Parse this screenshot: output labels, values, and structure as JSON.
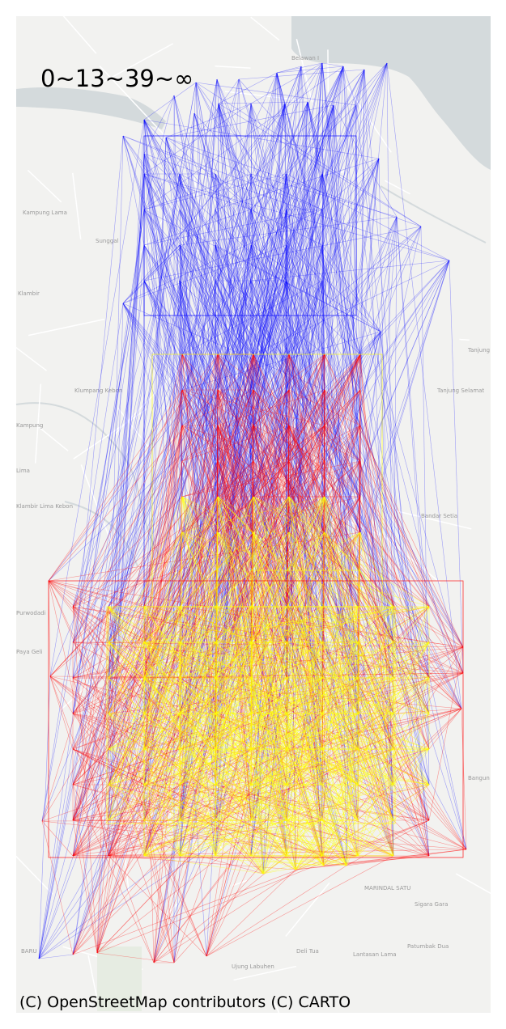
{
  "title": "0~13~39~∞",
  "attribution": "(C) OpenStreetMap contributors (C) CARTO",
  "basemap": {
    "land_color": "#f2f2f0",
    "water_color": "#d4dadc",
    "road_color": "#ffffff",
    "place_labels": [
      "Belawan I",
      "Kampung Lama",
      "Sunggal",
      "Klambir",
      "Tanjung",
      "Klumpang Kebon",
      "Tanjung Selamat",
      "Kampung",
      "Lima",
      "Klambir Lima Kebon",
      "Bandar Setia",
      "Purwodadi",
      "Paya Geli",
      "Bangun",
      "MARINDAL SATU",
      "Sigara Gara",
      "Patumbak Dua",
      "Deli Tua",
      "Lantasan Lama",
      "Ujung Labuhen",
      "BARU"
    ]
  },
  "legend_bins": [
    {
      "label": "0~13",
      "color": "#ffff00"
    },
    {
      "label": "13~39",
      "color": "#ff0000"
    },
    {
      "label": "39~∞",
      "color": "#0000ff"
    }
  ]
}
